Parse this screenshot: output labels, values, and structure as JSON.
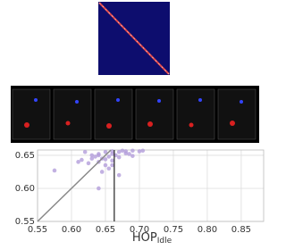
{
  "chart_data": {
    "type": "scatter",
    "xlabel": "HOP",
    "xlabel_subscript": "Idle",
    "x": [
      0.62,
      0.63,
      0.64,
      0.645,
      0.65,
      0.655,
      0.66,
      0.665,
      0.67,
      0.675,
      0.68,
      0.685,
      0.69,
      0.7,
      0.64,
      0.65,
      0.66,
      0.67,
      0.68,
      0.63,
      0.625,
      0.61,
      0.655,
      0.645,
      0.635,
      0.66,
      0.67,
      0.69,
      0.705,
      0.615,
      0.64,
      0.65,
      0.66,
      0.64,
      0.575
    ],
    "y": [
      0.655,
      0.65,
      0.652,
      0.645,
      0.655,
      0.648,
      0.656,
      0.65,
      0.655,
      0.657,
      0.656,
      0.652,
      0.657,
      0.656,
      0.64,
      0.635,
      0.642,
      0.647,
      0.653,
      0.645,
      0.638,
      0.64,
      0.63,
      0.625,
      0.648,
      0.635,
      0.62,
      0.649,
      0.657,
      0.643,
      0.65,
      0.644,
      0.652,
      0.6,
      0.627
    ],
    "color": "#b39ddb",
    "xlim": [
      0.55,
      0.883
    ],
    "ylim": [
      0.55,
      0.658
    ],
    "xticks": [
      0.55,
      {
        "value": 0.6,
        "label": "0.60"
      },
      0.65,
      {
        "value": 0.7,
        "label": "0.70"
      },
      0.75,
      {
        "value": 0.8,
        "label": "0.80"
      },
      0.85
    ],
    "yticks": [
      0.55,
      {
        "value": 0.6,
        "label": "0.60"
      },
      0.65
    ],
    "grid": true,
    "diagonal_reference": true,
    "vline": 0.663
  }
}
